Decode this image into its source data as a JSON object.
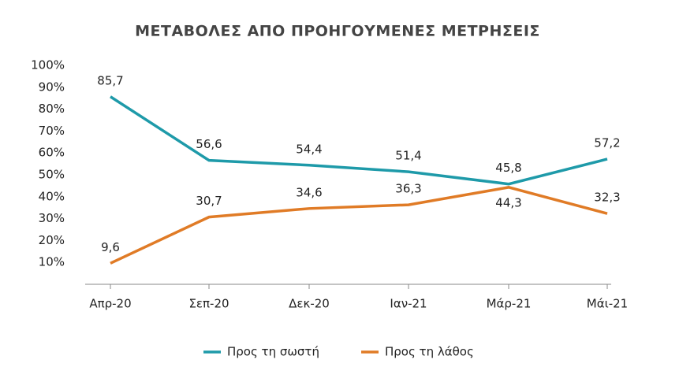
{
  "chart_data": {
    "type": "line",
    "title": "ΜΕΤΑΒΟΛΕΣ ΑΠΟ ΠΡΟΗΓΟΥΜΕΝΕΣ ΜΕΤΡΗΣΕΙΣ",
    "categories": [
      "Απρ-20",
      "Σεπ-20",
      "Δεκ-20",
      "Ιαν-21",
      "Μάρ-21",
      "Μάι-21"
    ],
    "series": [
      {
        "name": "Προς τη σωστή",
        "color": "#1e9aa9",
        "values": [
          85.7,
          56.6,
          54.4,
          51.4,
          45.8,
          57.2
        ],
        "value_labels": [
          "85,7",
          "56,6",
          "54,4",
          "51,4",
          "45,8",
          "57,2"
        ]
      },
      {
        "name": "Προς τη λάθος",
        "color": "#e07b26",
        "values": [
          9.6,
          30.7,
          34.6,
          36.3,
          44.3,
          32.3
        ],
        "value_labels": [
          "9,6",
          "30,7",
          "34,6",
          "36,3",
          "44,3",
          "32,3"
        ]
      }
    ],
    "ylim": [
      0,
      100
    ],
    "yticks": [
      {
        "value": 10,
        "label": "10%"
      },
      {
        "value": 20,
        "label": "20%"
      },
      {
        "value": 30,
        "label": "30%"
      },
      {
        "value": 40,
        "label": "40%"
      },
      {
        "value": 50,
        "label": "50%"
      },
      {
        "value": 60,
        "label": "60%"
      },
      {
        "value": 70,
        "label": "70%"
      },
      {
        "value": 80,
        "label": "80%"
      },
      {
        "value": 90,
        "label": "90%"
      },
      {
        "value": 100,
        "label": "100%"
      }
    ],
    "grid": false,
    "legend": "bottom"
  }
}
